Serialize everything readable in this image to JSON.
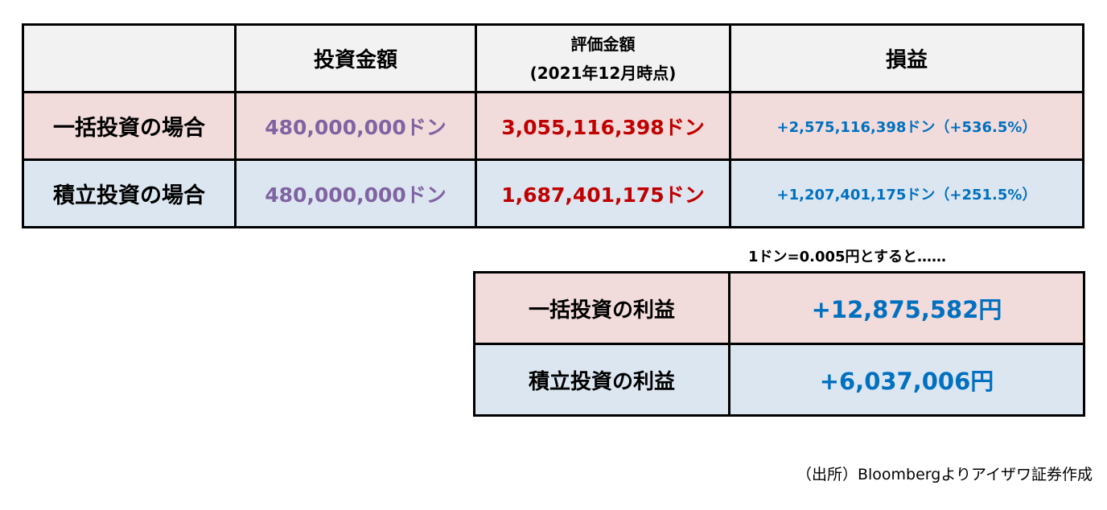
{
  "main_table": {
    "headers": {
      "blank": "",
      "investment_amount": "投資金額",
      "valuation_line1": "評価金額",
      "valuation_line2": "(2021年12月時点)",
      "profit_loss": "損益"
    },
    "rows": [
      {
        "label": "一括投資の場合",
        "investment": "480,000,000ドン",
        "valuation": "3,055,116,398ドン",
        "profit_loss": "+2,575,116,398ドン（+536.5%）"
      },
      {
        "label": "積立投資の場合",
        "investment": "480,000,000ドン",
        "valuation": "1,687,401,175ドン",
        "profit_loss": "+1,207,401,175ドン（+251.5%）"
      }
    ]
  },
  "note": "1ドン=0.005円とすると……",
  "profit_table": {
    "rows": [
      {
        "label": "一括投資の利益",
        "value": "+12,875,582円"
      },
      {
        "label": "積立投資の利益",
        "value": "+6,037,006円"
      }
    ]
  },
  "source": "（出所）Bloombergよりアイザワ証券作成",
  "colors": {
    "header_bg": "#f2f2f2",
    "lump_sum_bg": "#f2dcdb",
    "installment_bg": "#dce6f1",
    "investment_text": "#8064a2",
    "valuation_text": "#c00000",
    "profit_text": "#0070c0"
  }
}
